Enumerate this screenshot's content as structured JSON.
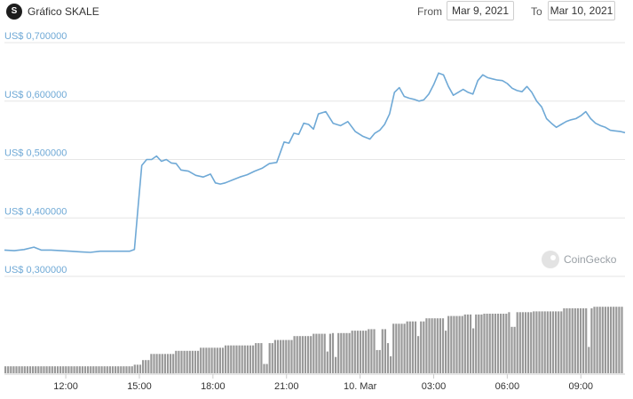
{
  "header": {
    "logo_text": "S",
    "title": "Gráfico SKALE",
    "from_label": "From",
    "from_value": "Mar 9, 2021",
    "to_label": "To",
    "to_value": "Mar 10, 2021"
  },
  "watermark": "CoinGecko",
  "colors": {
    "price_line": "#6fa9d6",
    "volume_bar": "#999999",
    "grid": "#e6e6e6"
  },
  "chart_data": {
    "type": "line",
    "title": "",
    "ylim": [
      0.3,
      0.7
    ],
    "y_tick_values": [
      0.3,
      0.4,
      0.5,
      0.6,
      0.7
    ],
    "y_tick_labels": [
      "US$ 0,300000",
      "US$ 0,400000",
      "US$ 0,500000",
      "US$ 0,600000",
      "US$ 0,700000"
    ],
    "x_tick_values": [
      12,
      15,
      18,
      21,
      24,
      27,
      30,
      33
    ],
    "x_tick_labels": [
      "12:00",
      "15:00",
      "18:00",
      "21:00",
      "10. Mar",
      "03:00",
      "06:00",
      "09:00"
    ],
    "xlim": [
      9.5,
      34.8
    ],
    "series": [
      {
        "x": [
          9.5,
          9.9,
          10.3,
          10.7,
          11.0,
          11.4,
          11.8,
          12.2,
          12.6,
          13.0,
          13.4,
          13.8,
          14.2,
          14.6,
          14.8,
          14.95,
          15.1,
          15.3,
          15.5,
          15.7,
          15.9,
          16.1,
          16.3,
          16.5,
          16.7,
          17.0,
          17.3,
          17.6,
          17.9,
          18.1,
          18.3,
          18.5,
          18.8,
          19.1,
          19.4,
          19.7,
          20.0,
          20.3,
          20.6,
          20.9,
          21.1,
          21.3,
          21.5,
          21.7,
          21.9,
          22.1,
          22.3,
          22.6,
          22.9,
          23.2,
          23.5,
          23.8,
          24.1,
          24.4,
          24.6,
          24.8,
          25.0,
          25.2,
          25.4,
          25.6,
          25.8,
          26.0,
          26.2,
          26.4,
          26.6,
          26.8,
          27.0,
          27.2,
          27.4,
          27.6,
          27.8,
          28.0,
          28.2,
          28.4,
          28.6,
          28.8,
          29.0,
          29.2,
          29.4,
          29.6,
          29.8,
          30.0,
          30.2,
          30.4,
          30.6,
          30.8,
          31.0,
          31.2,
          31.4,
          31.6,
          31.8,
          32.0,
          32.2,
          32.4,
          32.6,
          32.8,
          33.0,
          33.2,
          33.4,
          33.6,
          33.8,
          34.0,
          34.2,
          34.4,
          34.6,
          34.8
        ],
        "y": [
          0.345,
          0.344,
          0.346,
          0.35,
          0.345,
          0.345,
          0.344,
          0.343,
          0.342,
          0.341,
          0.343,
          0.343,
          0.343,
          0.343,
          0.346,
          0.42,
          0.49,
          0.5,
          0.5,
          0.506,
          0.497,
          0.5,
          0.494,
          0.493,
          0.482,
          0.48,
          0.473,
          0.47,
          0.475,
          0.46,
          0.458,
          0.46,
          0.465,
          0.47,
          0.474,
          0.48,
          0.485,
          0.493,
          0.495,
          0.53,
          0.528,
          0.545,
          0.543,
          0.562,
          0.56,
          0.552,
          0.578,
          0.582,
          0.562,
          0.558,
          0.565,
          0.548,
          0.54,
          0.535,
          0.545,
          0.55,
          0.56,
          0.578,
          0.615,
          0.623,
          0.608,
          0.605,
          0.603,
          0.6,
          0.602,
          0.612,
          0.628,
          0.648,
          0.645,
          0.625,
          0.61,
          0.615,
          0.62,
          0.615,
          0.612,
          0.635,
          0.645,
          0.64,
          0.638,
          0.636,
          0.635,
          0.63,
          0.622,
          0.618,
          0.616,
          0.625,
          0.615,
          0.6,
          0.59,
          0.57,
          0.562,
          0.555,
          0.56,
          0.565,
          0.568,
          0.57,
          0.575,
          0.582,
          0.57,
          0.562,
          0.558,
          0.555,
          0.55,
          0.549,
          0.548,
          0.546
        ]
      }
    ],
    "volume": {
      "x_start": 9.5,
      "x_end": 34.8,
      "levels": [
        [
          9.5,
          14.7,
          0.09
        ],
        [
          14.7,
          15.0,
          0.11
        ],
        [
          15.0,
          15.4,
          0.17
        ],
        [
          15.4,
          16.4,
          0.25
        ],
        [
          16.4,
          17.4,
          0.29
        ],
        [
          17.4,
          18.4,
          0.33
        ],
        [
          18.4,
          19.6,
          0.36
        ],
        [
          19.6,
          20.4,
          0.39
        ],
        [
          20.4,
          21.2,
          0.43
        ],
        [
          21.2,
          22.0,
          0.48
        ],
        [
          22.0,
          22.8,
          0.51
        ],
        [
          22.8,
          23.6,
          0.52
        ],
        [
          23.6,
          24.2,
          0.55
        ],
        [
          24.2,
          25.0,
          0.57
        ],
        [
          25.0,
          25.8,
          0.64
        ],
        [
          25.8,
          26.6,
          0.67
        ],
        [
          26.6,
          27.4,
          0.71
        ],
        [
          27.4,
          28.2,
          0.74
        ],
        [
          28.2,
          29.0,
          0.76
        ],
        [
          29.0,
          30.0,
          0.77
        ],
        [
          30.0,
          31.0,
          0.79
        ],
        [
          31.0,
          32.2,
          0.8
        ],
        [
          32.2,
          33.4,
          0.84
        ],
        [
          33.4,
          34.8,
          0.86
        ]
      ],
      "dips": [
        [
          20.1,
          0.12
        ],
        [
          22.6,
          0.28
        ],
        [
          23.0,
          0.21
        ],
        [
          24.7,
          0.3
        ],
        [
          25.1,
          0.39
        ],
        [
          25.2,
          0.22
        ],
        [
          26.3,
          0.48
        ],
        [
          27.5,
          0.55
        ],
        [
          28.6,
          0.58
        ],
        [
          30.2,
          0.6
        ],
        [
          33.3,
          0.34
        ]
      ]
    }
  }
}
